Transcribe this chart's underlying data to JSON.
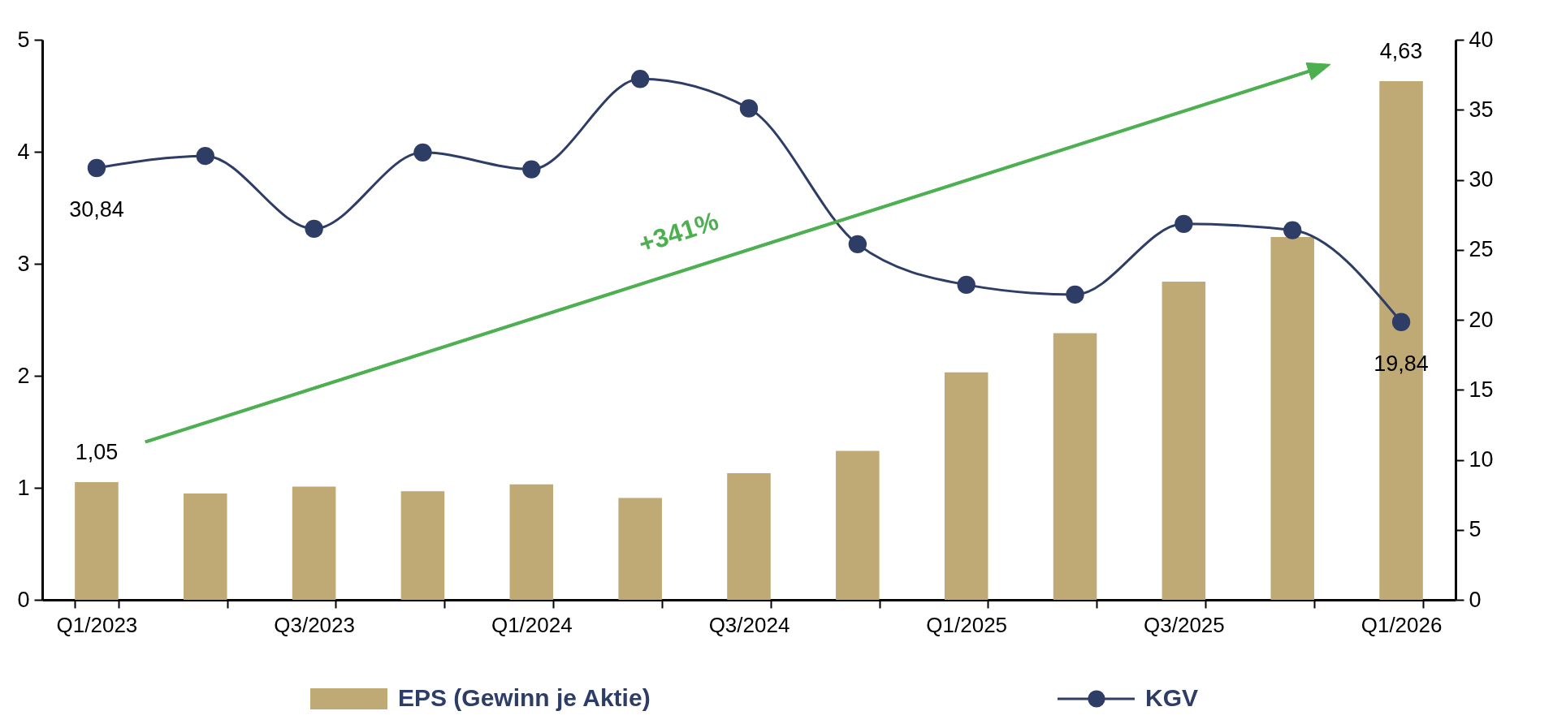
{
  "chart_data": {
    "type": "bar",
    "categories": [
      "Q1/2023",
      null,
      "Q3/2023",
      null,
      "Q1/2024",
      null,
      "Q3/2024",
      null,
      "Q1/2025",
      null,
      "Q3/2025",
      null,
      "Q1/2026"
    ],
    "series": [
      {
        "name": "EPS (Gewinn je Aktie)",
        "type": "bar",
        "color": "#bfa974",
        "values": [
          1.05,
          0.95,
          1.01,
          0.97,
          1.03,
          0.91,
          1.13,
          1.33,
          2.03,
          2.38,
          2.84,
          3.24,
          4.63
        ],
        "value_labels": [
          "1,05",
          null,
          null,
          null,
          null,
          null,
          null,
          null,
          null,
          null,
          null,
          null,
          "4,63"
        ]
      },
      {
        "name": "KGV",
        "type": "line",
        "axis": "y2",
        "color": "#2e3d66",
        "marker": "circle",
        "values": [
          30.84,
          31.7,
          26.5,
          31.95,
          30.75,
          37.2,
          35.1,
          25.4,
          22.5,
          21.8,
          26.85,
          26.4,
          19.84
        ],
        "value_labels": [
          "30,84",
          null,
          null,
          null,
          null,
          null,
          null,
          null,
          null,
          null,
          null,
          null,
          "19,84"
        ]
      }
    ],
    "ylim": [
      0,
      5
    ],
    "yticks": [
      0,
      1,
      2,
      3,
      4,
      5
    ],
    "y2lim": [
      0,
      40
    ],
    "y2ticks": [
      0,
      5,
      10,
      15,
      20,
      25,
      30,
      35,
      40
    ],
    "annotations": [
      "+341%"
    ],
    "grid": false,
    "legend": "bottom"
  }
}
